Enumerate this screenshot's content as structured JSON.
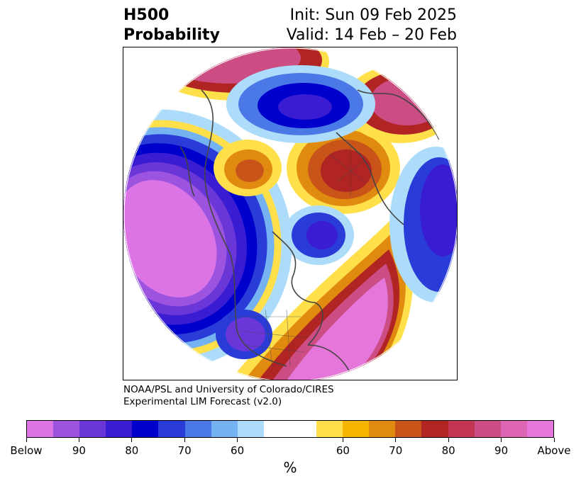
{
  "header": {
    "variable": "H500",
    "quantity": "Probability",
    "init": "Init: Sun 09 Feb 2025",
    "valid": "Valid: 14 Feb – 20 Feb"
  },
  "credit": {
    "line1": "NOAA/PSL and University of Colorado/CIRES",
    "line2": "Experimental LIM Forecast (v2.0)"
  },
  "colorbar": {
    "colors": [
      "#dc74e6",
      "#9c54e0",
      "#6a36d8",
      "#3a1cd2",
      "#0000cc",
      "#2a3cd8",
      "#4a78e6",
      "#74b2f2",
      "#acdcfa",
      "#ffffff",
      "#ffffff",
      "#ffe04a",
      "#f4b400",
      "#e08a10",
      "#c8541a",
      "#b02424",
      "#c23654",
      "#cc4c84",
      "#de64b4",
      "#e677da"
    ],
    "labels": [
      "Below",
      "90",
      "80",
      "70",
      "60",
      "60",
      "70",
      "80",
      "90",
      "Above"
    ],
    "unit": "%"
  },
  "map": {
    "projection": "north-polar-stereographic",
    "below_normal_color": "#dc74e6",
    "above_normal_color": "#e677da",
    "coastline_color": "#444444"
  }
}
